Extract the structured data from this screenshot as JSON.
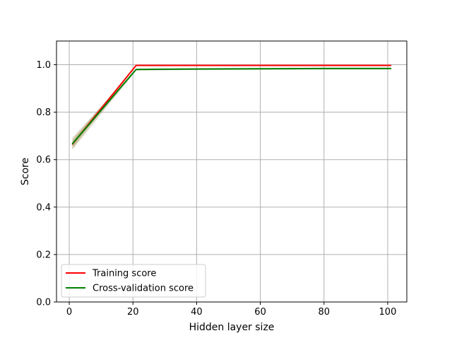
{
  "chart_data": {
    "type": "line",
    "xlabel": "Hidden layer size",
    "ylabel": "Score",
    "xlim": [
      -4,
      106
    ],
    "ylim": [
      0,
      1.1
    ],
    "xticks": [
      0,
      20,
      40,
      60,
      80,
      100
    ],
    "yticks": [
      0.0,
      0.2,
      0.4,
      0.6,
      0.8,
      1.0
    ],
    "xtick_labels": [
      "0",
      "20",
      "40",
      "60",
      "80",
      "100"
    ],
    "ytick_labels": [
      "0.0",
      "0.2",
      "0.4",
      "0.6",
      "0.8",
      "1.0"
    ],
    "grid": true,
    "legend_position": "lower-left",
    "x": [
      1,
      21,
      41,
      61,
      81,
      101
    ],
    "series": [
      {
        "name": "Training score",
        "color": "#ff0000",
        "values": [
          0.665,
          0.997,
          0.997,
          0.997,
          0.997,
          0.997
        ],
        "band_lower": [
          0.648,
          0.996,
          0.996,
          0.996,
          0.996,
          0.996
        ],
        "band_upper": [
          0.682,
          0.998,
          0.998,
          0.998,
          0.998,
          0.998
        ]
      },
      {
        "name": "Cross-validation score",
        "color": "#008000",
        "values": [
          0.667,
          0.98,
          0.982,
          0.983,
          0.984,
          0.984
        ],
        "band_lower": [
          0.642,
          0.976,
          0.978,
          0.979,
          0.98,
          0.98
        ],
        "band_upper": [
          0.692,
          0.984,
          0.986,
          0.987,
          0.988,
          0.988
        ]
      }
    ],
    "band_color": "#8a7d3c",
    "grid_color": "#b0b0b0"
  }
}
